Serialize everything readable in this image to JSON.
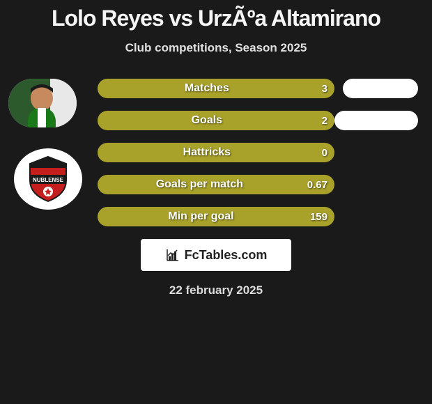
{
  "title": "Lolo Reyes vs UrzÃºa Altamirano",
  "subtitle": "Club competitions, Season 2025",
  "date": "22 february 2025",
  "badge_text": "FcTables.com",
  "colors": {
    "bar_primary": "#a8a12a",
    "bar_secondary": "#ffffff",
    "background": "#1a1a1a"
  },
  "club": {
    "name": "NUBLENSE",
    "shield_color": "#c41e1e",
    "banner_color": "#1a1a1a"
  },
  "stats": [
    {
      "label": "Matches",
      "value_left": "3",
      "bar_left_width": 340,
      "bar_right_width": 108,
      "show_right": true
    },
    {
      "label": "Goals",
      "value_left": "2",
      "bar_left_width": 340,
      "bar_right_width": 120,
      "show_right": true
    },
    {
      "label": "Hattricks",
      "value_left": "0",
      "bar_left_width": 340,
      "bar_right_width": 0,
      "show_right": false
    },
    {
      "label": "Goals per match",
      "value_left": "0.67",
      "bar_left_width": 340,
      "bar_right_width": 0,
      "show_right": false
    },
    {
      "label": "Min per goal",
      "value_left": "159",
      "bar_left_width": 340,
      "bar_right_width": 0,
      "show_right": false
    }
  ]
}
